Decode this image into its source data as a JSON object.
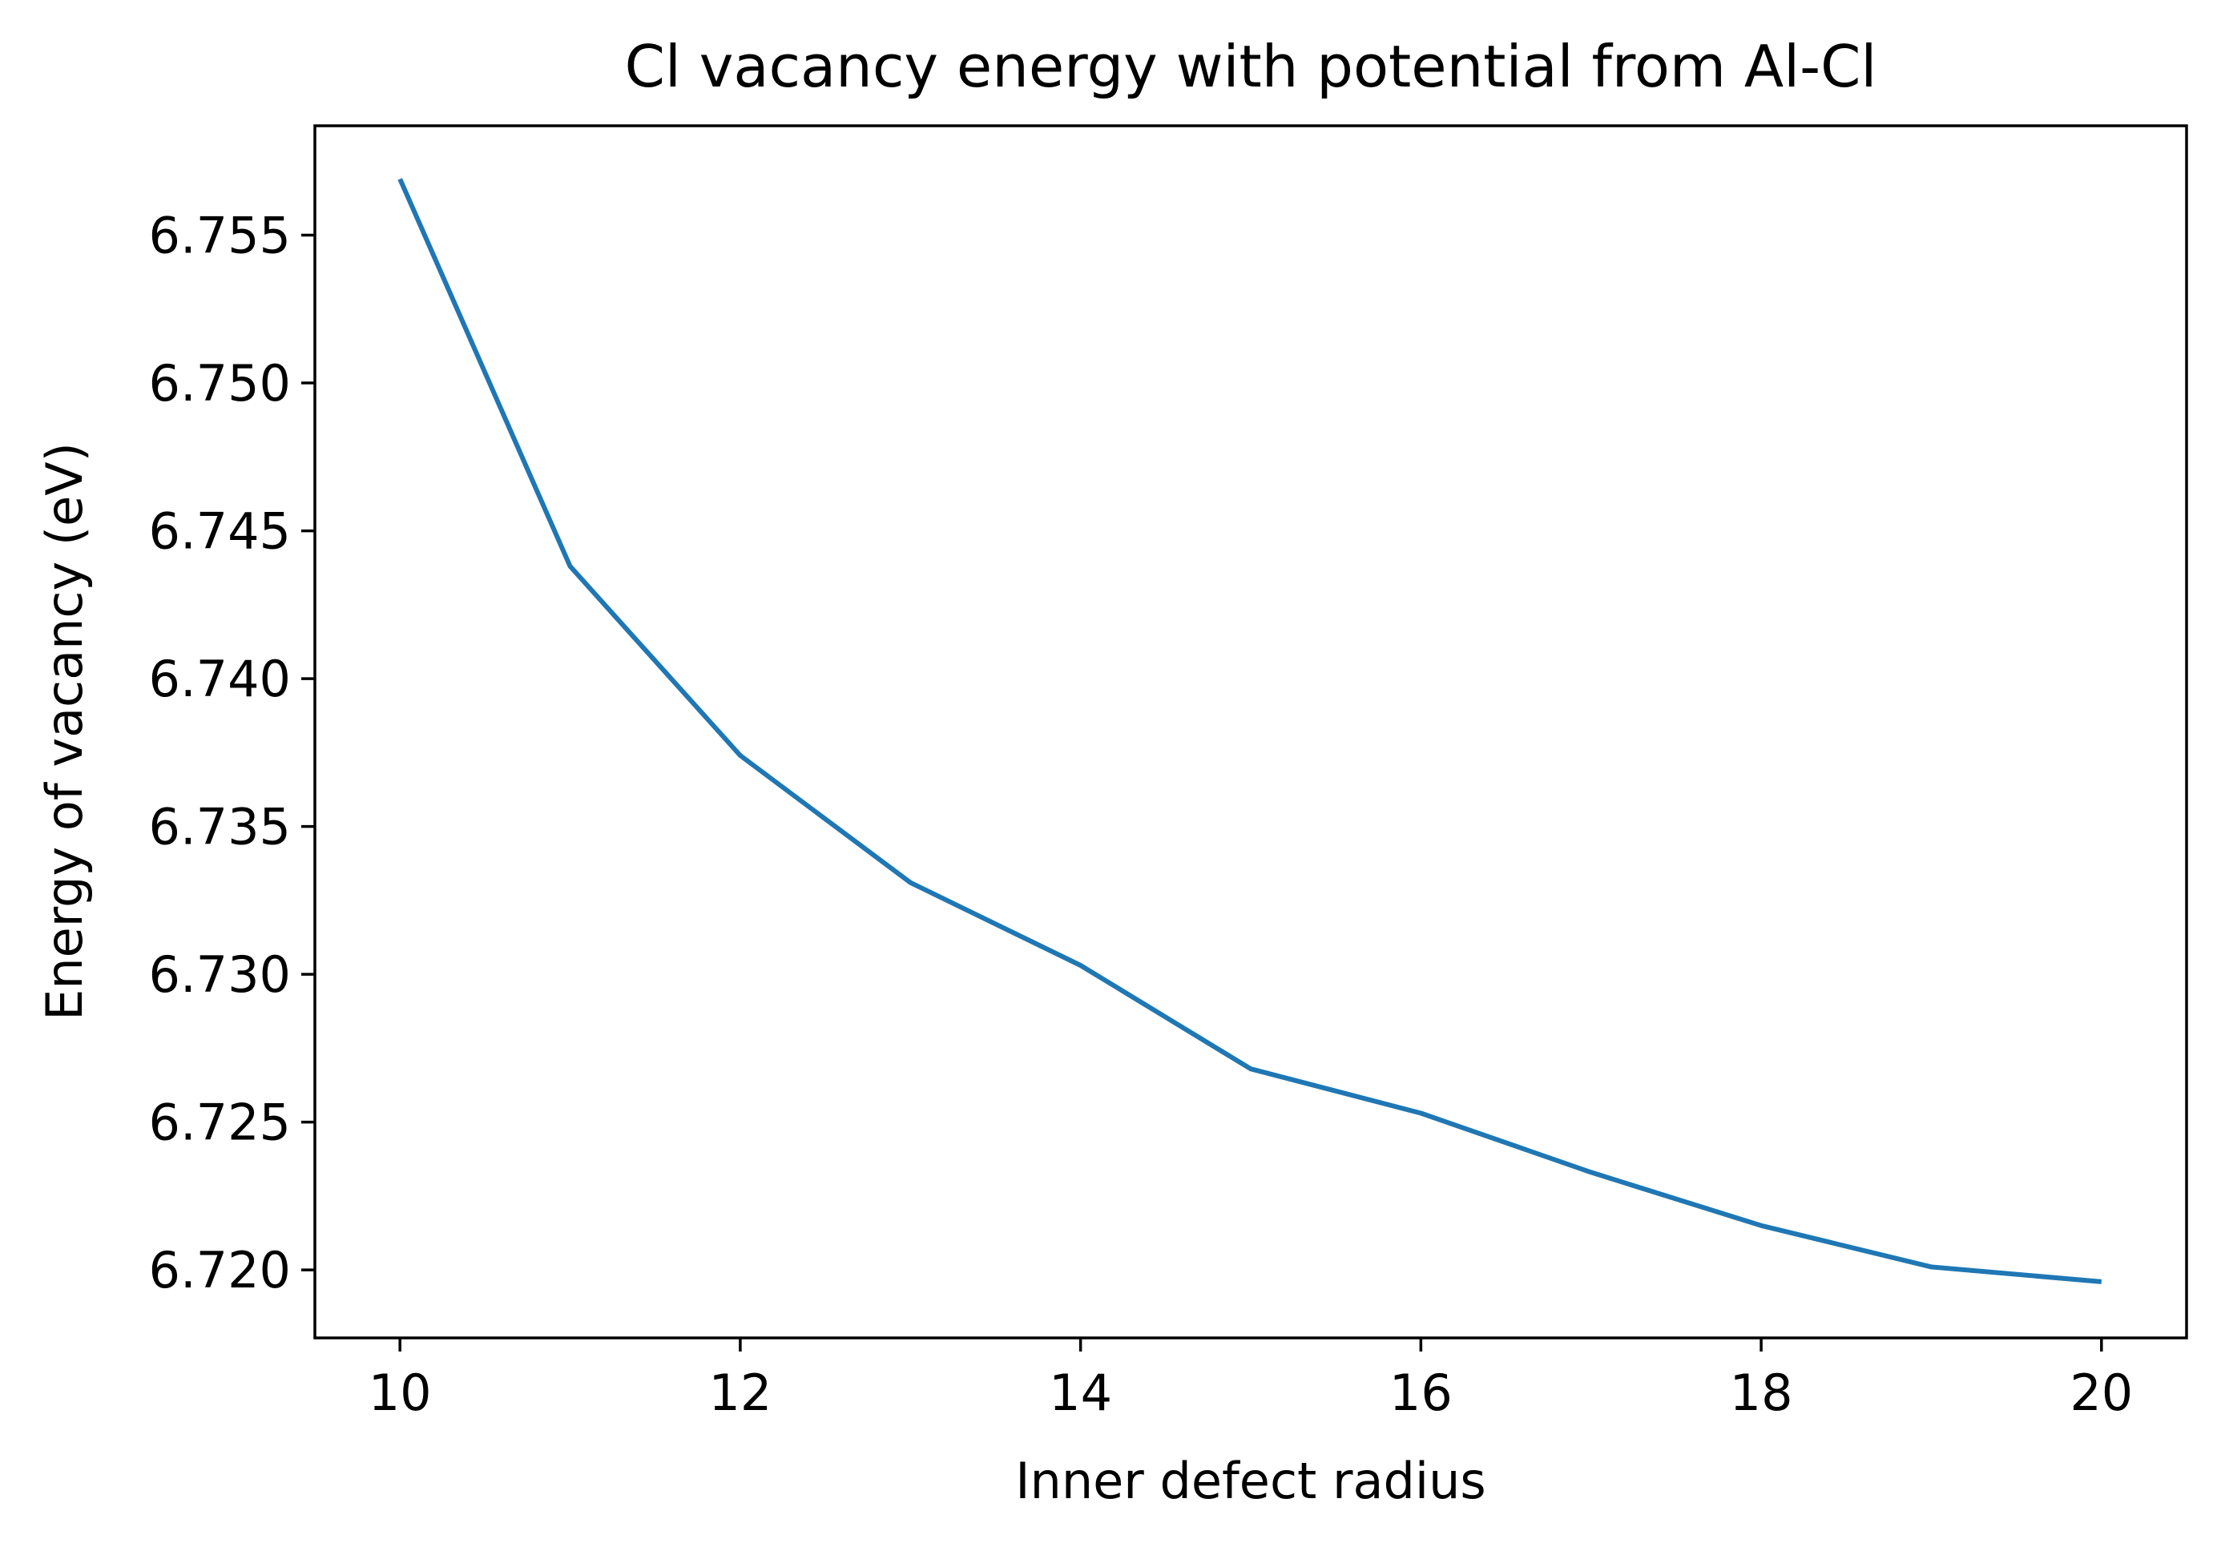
{
  "chart_data": {
    "type": "line",
    "title": "Cl vacancy energy with potential from Al-Cl",
    "xlabel": "Inner defect radius",
    "ylabel": "Energy of vacancy (eV)",
    "xlim": [
      9.5,
      20.5
    ],
    "ylim": [
      6.7177,
      6.7587
    ],
    "xticks": [
      10,
      12,
      14,
      16,
      18,
      20
    ],
    "xtick_labels": [
      "10",
      "12",
      "14",
      "16",
      "18",
      "20"
    ],
    "yticks": [
      6.72,
      6.725,
      6.73,
      6.735,
      6.74,
      6.745,
      6.75,
      6.755
    ],
    "ytick_labels": [
      "6.720",
      "6.725",
      "6.730",
      "6.735",
      "6.740",
      "6.745",
      "6.750",
      "6.755"
    ],
    "grid": false,
    "series": [
      {
        "color": "#1f77b4",
        "x": [
          10,
          11,
          12,
          13,
          14,
          15,
          16,
          17,
          18,
          19,
          20
        ],
        "y": [
          6.7569,
          6.7438,
          6.7374,
          6.7331,
          6.7303,
          6.7268,
          6.7253,
          6.7233,
          6.7215,
          6.7201,
          6.7196
        ]
      }
    ]
  }
}
